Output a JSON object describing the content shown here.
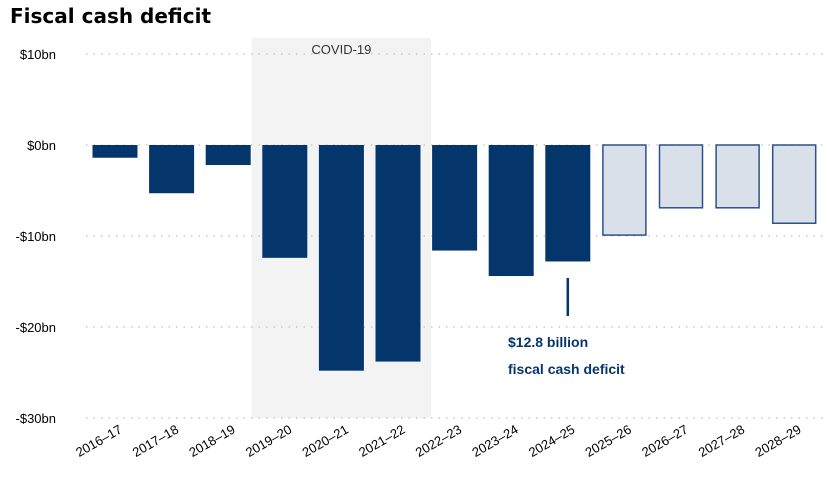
{
  "chart_data": {
    "type": "bar",
    "title": "Fiscal cash deficit",
    "categories": [
      "2016–17",
      "2017–18",
      "2018–19",
      "2019–20",
      "2020–21",
      "2021–22",
      "2022–23",
      "2023–24",
      "2024–25",
      "2025–26",
      "2026–27",
      "2027–28",
      "2028–29"
    ],
    "values": [
      -1.4,
      -5.3,
      -2.2,
      -12.4,
      -24.8,
      -23.8,
      -11.6,
      -14.4,
      -12.8,
      -9.9,
      -6.9,
      -6.9,
      -8.6
    ],
    "projected": [
      false,
      false,
      false,
      false,
      false,
      false,
      false,
      false,
      false,
      true,
      true,
      true,
      true
    ],
    "ylim": [
      -30,
      10
    ],
    "yticks": [
      10,
      0,
      -10,
      -20,
      -30
    ],
    "ytick_labels": [
      "$10bn",
      "$0bn",
      "-$10bn",
      "-$20bn",
      "-$30bn"
    ],
    "grid": true,
    "shaded_region": {
      "label": "COVID-19",
      "from": "2019–20",
      "to": "2021–22"
    },
    "annotation": {
      "category": "2024–25",
      "line1": "$12.8 billion",
      "line2": "fiscal cash deficit"
    },
    "colors": {
      "actual": "#05366b",
      "projected_fill": "#dae0ea",
      "projected_stroke": "#2c5286",
      "shade": "#f3f3f3",
      "grid": "#c8c8c8"
    }
  }
}
